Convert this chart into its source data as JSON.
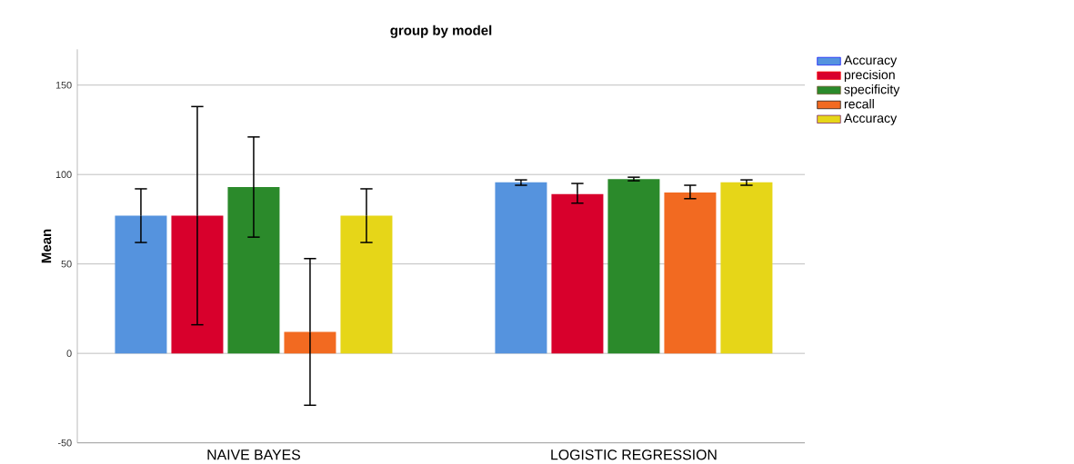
{
  "chart_data": {
    "type": "bar",
    "title": "group by model",
    "ylabel": "Mean",
    "categories": [
      "NAIVE BAYES",
      "LOGISTIC REGRESSION"
    ],
    "series": [
      {
        "name": "Accuracy",
        "color": "#5593de",
        "values": [
          77,
          95.7
        ],
        "errors": [
          [
            62,
            92
          ],
          [
            94,
            97
          ]
        ]
      },
      {
        "name": "precision",
        "color": "#d8002c",
        "values": [
          77,
          89
        ],
        "errors": [
          [
            16,
            138
          ],
          [
            84,
            95
          ]
        ]
      },
      {
        "name": "specificity",
        "color": "#2b8a2b",
        "values": [
          93,
          97.5
        ],
        "errors": [
          [
            65,
            121
          ],
          [
            96.5,
            98.5
          ]
        ]
      },
      {
        "name": "recall",
        "color": "#f26a21",
        "values": [
          12,
          90
        ],
        "errors": [
          [
            -29,
            53
          ],
          [
            86.5,
            94
          ]
        ]
      },
      {
        "name": "Accuracy",
        "color": "#e6d618",
        "values": [
          77,
          95.7
        ],
        "errors": [
          [
            62,
            92
          ],
          [
            94,
            97
          ]
        ]
      }
    ],
    "ylim": [
      -50,
      170
    ],
    "yticks": [
      -50,
      0,
      50,
      100,
      150
    ],
    "grid": "y",
    "legend": "top right"
  }
}
